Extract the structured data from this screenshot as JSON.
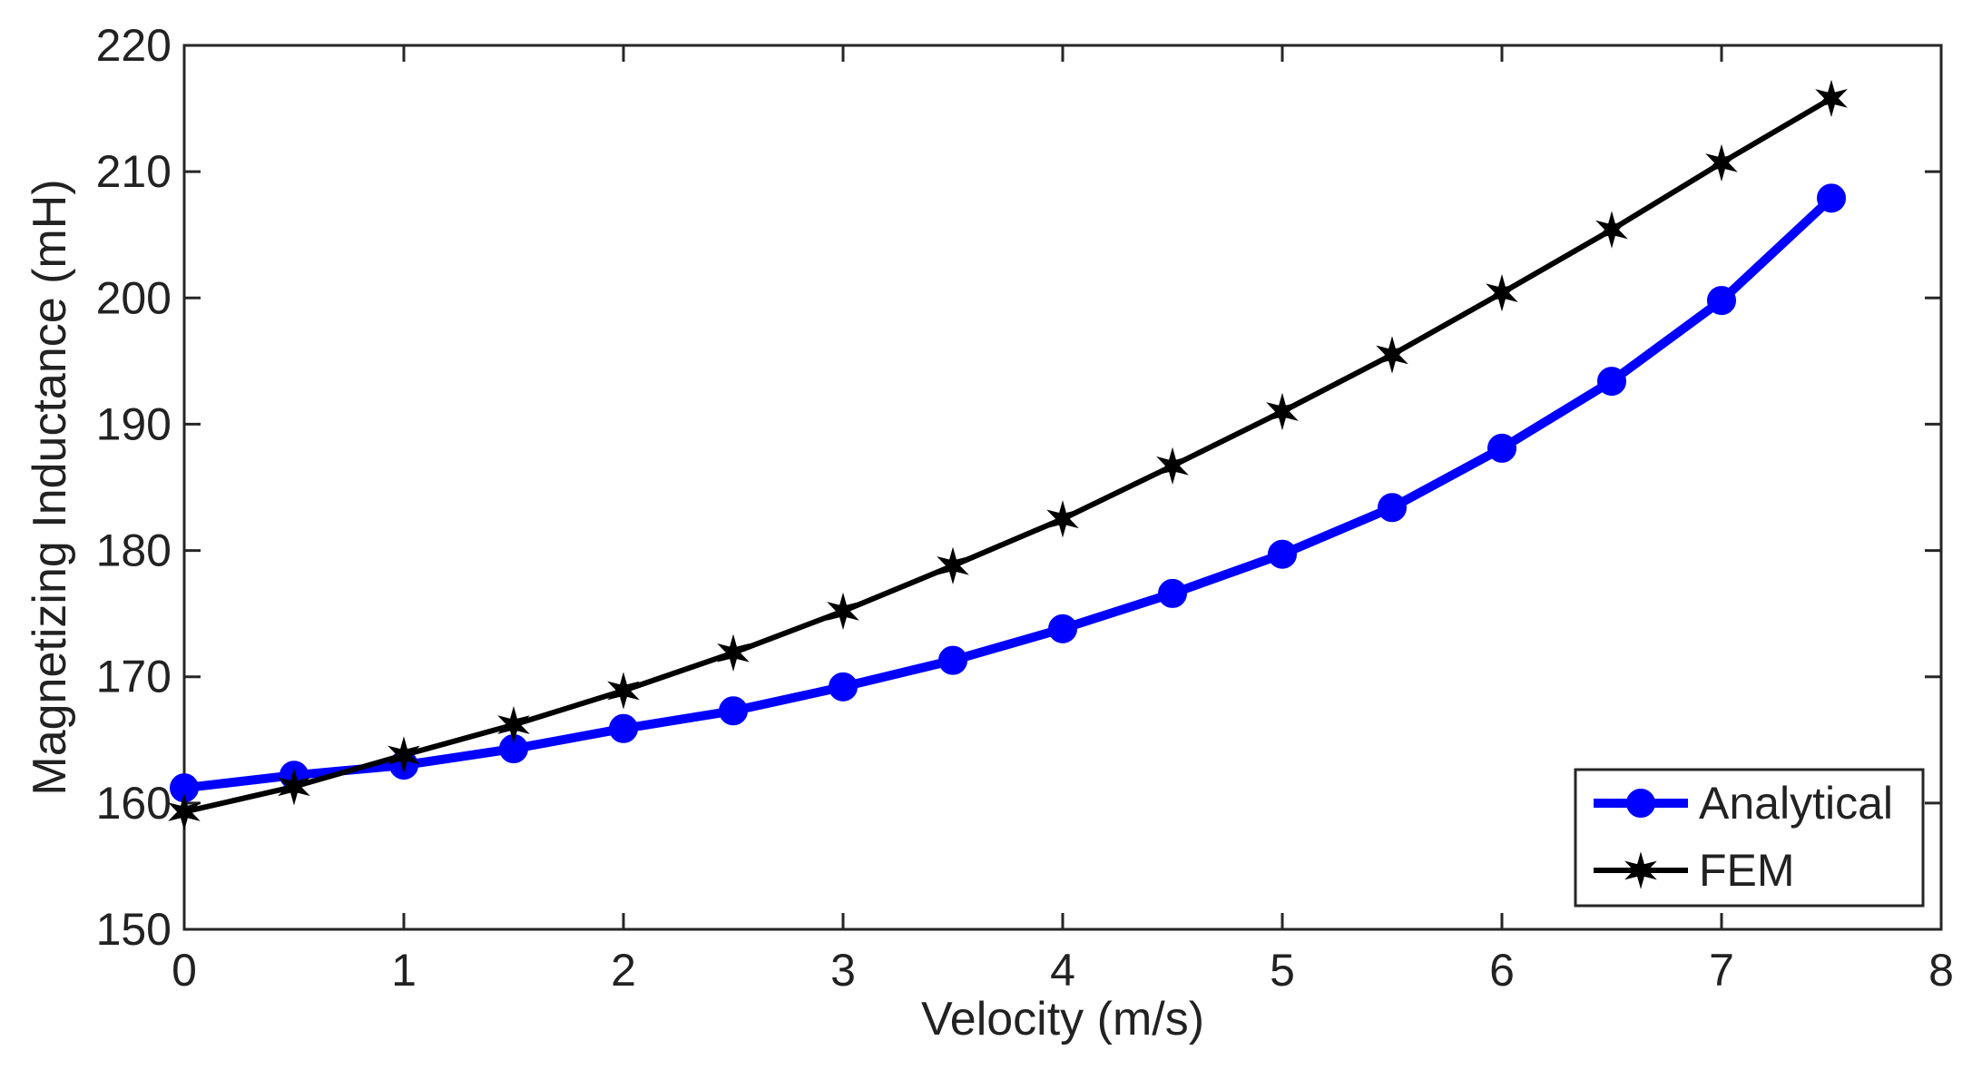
{
  "chart_data": {
    "type": "line",
    "title": "",
    "xlabel": "Velocity (m/s)",
    "ylabel": "Magnetizing Inductance (mH)",
    "xlim": [
      0,
      8
    ],
    "ylim": [
      150,
      220
    ],
    "xticks": [
      0,
      1,
      2,
      3,
      4,
      5,
      6,
      7,
      8
    ],
    "yticks": [
      150,
      160,
      170,
      180,
      190,
      200,
      210,
      220
    ],
    "grid": false,
    "legend_position": "bottom-right",
    "series": [
      {
        "name": "Analytical",
        "color": "#0000ff",
        "marker": "circle",
        "x": [
          0,
          0.5,
          1,
          1.5,
          2,
          2.5,
          3,
          3.5,
          4,
          4.5,
          5,
          5.5,
          6,
          6.5,
          7,
          7.5
        ],
        "values": [
          161.2,
          162.2,
          163.0,
          164.3,
          165.9,
          167.3,
          169.2,
          171.3,
          173.8,
          176.6,
          179.7,
          183.4,
          188.1,
          193.4,
          199.8,
          207.9
        ]
      },
      {
        "name": "FEM",
        "color": "#000000",
        "marker": "star",
        "x": [
          0,
          0.5,
          1,
          1.5,
          2,
          2.5,
          3,
          3.5,
          4,
          4.5,
          5,
          5.5,
          6,
          6.5,
          7,
          7.5
        ],
        "values": [
          159.3,
          161.3,
          163.8,
          166.2,
          168.9,
          171.9,
          175.2,
          178.8,
          182.5,
          186.7,
          191.0,
          195.5,
          200.4,
          205.4,
          210.7,
          215.8
        ]
      }
    ]
  }
}
